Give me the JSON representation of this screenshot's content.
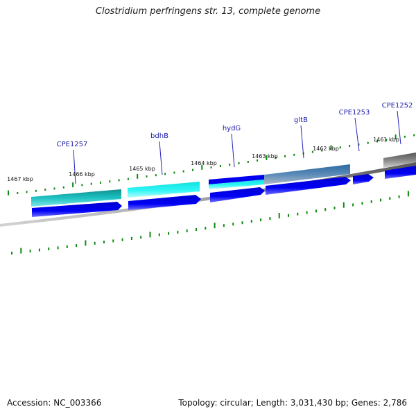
{
  "title": "Clostridium perfringens str. 13, complete genome",
  "footer": {
    "accession": "Accession: NC_003366",
    "stats": "Topology: circular; Length: 3,031,430 bp; Genes: 2,786"
  },
  "colors": {
    "cds_blue": "#0000ee",
    "teal": "#129a9a",
    "cyan": "#18f0f0",
    "steel": "#3f78ad",
    "grey": "#6e6e6e",
    "tick_green": "#0d8a0d",
    "label_blue": "#1a1aaa",
    "backbone": "#707070"
  },
  "genes": [
    {
      "name": "CPE1257"
    },
    {
      "name": "bdhB"
    },
    {
      "name": "hydG"
    },
    {
      "name": "gltB"
    },
    {
      "name": "CPE1253"
    },
    {
      "name": "CPE1252"
    }
  ],
  "kbp_labels": [
    "1467 kbp",
    "1466 kbp",
    "1465 kbp",
    "1464 kbp",
    "1463 kbp",
    "1462 kbp",
    "1461 kbp"
  ]
}
